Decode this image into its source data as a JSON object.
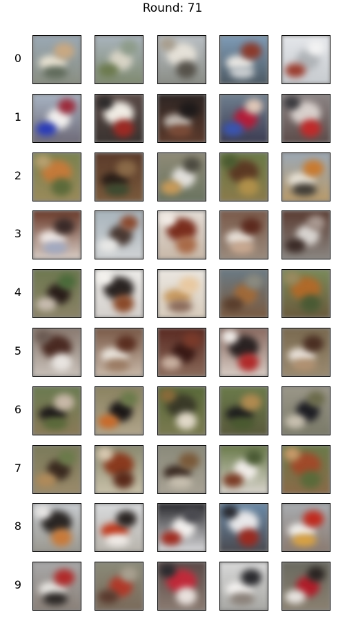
{
  "title": "Round: 71",
  "rows": [
    {
      "label": "0",
      "tiles": [
        {
          "name": "airplane-sample-0-0",
          "bg": [
            "#9aa8b4",
            "#8a8f82"
          ],
          "blobs": [
            "#e8e2d2",
            "#c8a882",
            "#5f6a5a"
          ]
        },
        {
          "name": "airplane-sample-0-1",
          "bg": [
            "#a9b4bd",
            "#7f8a70"
          ],
          "blobs": [
            "#d8d4c6",
            "#6c7a4e",
            "#8d9b89"
          ]
        },
        {
          "name": "airplane-sample-0-2",
          "bg": [
            "#b9bfc4",
            "#8a8d86"
          ],
          "blobs": [
            "#e5e1d8",
            "#56524a",
            "#a89e8e"
          ]
        },
        {
          "name": "airplane-sample-0-3",
          "bg": [
            "#7f9cb7",
            "#4d5a64"
          ],
          "blobs": [
            "#e8e6e2",
            "#8b3a2c",
            "#c9cdd0"
          ]
        },
        {
          "name": "airplane-sample-0-4",
          "bg": [
            "#e4e6ea",
            "#c7cbcf"
          ],
          "blobs": [
            "#b0b4b8",
            "#9a3c2e",
            "#f2f2f2"
          ]
        }
      ]
    },
    {
      "label": "1",
      "tiles": [
        {
          "name": "automobile-sample-1-0",
          "bg": [
            "#a7b3c2",
            "#6e6a78"
          ],
          "blobs": [
            "#f2f0ee",
            "#2a3bb8",
            "#9c2a3a"
          ]
        },
        {
          "name": "automobile-sample-1-1",
          "bg": [
            "#5a4a46",
            "#3a3330"
          ],
          "blobs": [
            "#f0ece4",
            "#9c2a24",
            "#2c2a2a"
          ]
        },
        {
          "name": "automobile-sample-1-2",
          "bg": [
            "#2e2624",
            "#5b3a2c"
          ],
          "blobs": [
            "#c0b8b0",
            "#1e1a1a",
            "#7a4a36"
          ]
        },
        {
          "name": "automobile-sample-1-3",
          "bg": [
            "#6f7f8f",
            "#3c3c52"
          ],
          "blobs": [
            "#b21e3a",
            "#3a54b0",
            "#e0c8b8"
          ]
        },
        {
          "name": "automobile-sample-1-4",
          "bg": [
            "#8c8484",
            "#5c4c4a"
          ],
          "blobs": [
            "#d8d0cc",
            "#c02a2a",
            "#3a3a3e"
          ]
        }
      ]
    },
    {
      "label": "2",
      "tiles": [
        {
          "name": "bird-sample-2-0",
          "bg": [
            "#7a8250",
            "#9a8a5a"
          ],
          "blobs": [
            "#c47a3a",
            "#5c6a3a",
            "#b8a070"
          ]
        },
        {
          "name": "bird-sample-2-1",
          "bg": [
            "#5a3a2a",
            "#7a5a3c"
          ],
          "blobs": [
            "#2a1e18",
            "#8a6a48",
            "#3c4a30"
          ]
        },
        {
          "name": "bird-sample-2-2",
          "bg": [
            "#8e8a76",
            "#6a7460"
          ],
          "blobs": [
            "#e2e0dc",
            "#c89a58",
            "#4c4a40"
          ]
        },
        {
          "name": "bird-sample-2-3",
          "bg": [
            "#6a7a48",
            "#8a7a4a"
          ],
          "blobs": [
            "#5c3a24",
            "#b0904a",
            "#4a5a30"
          ]
        },
        {
          "name": "bird-sample-2-4",
          "bg": [
            "#9ca8b4",
            "#b89a6a"
          ],
          "blobs": [
            "#e8e2d6",
            "#c87a30",
            "#3e3a34"
          ]
        }
      ]
    },
    {
      "label": "3",
      "tiles": [
        {
          "name": "cat-sample-3-0",
          "bg": [
            "#6a3a2a",
            "#d8ccc4"
          ],
          "blobs": [
            "#f0e8e4",
            "#3a2a28",
            "#a0a8c0"
          ]
        },
        {
          "name": "cat-sample-3-1",
          "bg": [
            "#a8b4bc",
            "#cfd2d4"
          ],
          "blobs": [
            "#4a3a34",
            "#e8e8e6",
            "#8a4a30"
          ]
        },
        {
          "name": "cat-sample-3-2",
          "bg": [
            "#e4ddd6",
            "#c8b8a8"
          ],
          "blobs": [
            "#7a2e1e",
            "#a86a48",
            "#f2ece6"
          ]
        },
        {
          "name": "cat-sample-3-3",
          "bg": [
            "#7a5a4a",
            "#9a8a7c"
          ],
          "blobs": [
            "#e8e0d8",
            "#5c2a1e",
            "#c8a890"
          ]
        },
        {
          "name": "cat-sample-3-4",
          "bg": [
            "#5a3c32",
            "#8a8580"
          ],
          "blobs": [
            "#d8d4d0",
            "#3a2a26",
            "#a89890"
          ]
        }
      ]
    },
    {
      "label": "4",
      "tiles": [
        {
          "name": "deer-sample-4-0",
          "bg": [
            "#6e7850",
            "#8a8266"
          ],
          "blobs": [
            "#2a1e1a",
            "#c8bcb0",
            "#4a6a3a"
          ]
        },
        {
          "name": "deer-sample-4-1",
          "bg": [
            "#ecebe8",
            "#d4d0cc"
          ],
          "blobs": [
            "#2a2422",
            "#8a4a2a",
            "#f4f2ee"
          ]
        },
        {
          "name": "deer-sample-4-2",
          "bg": [
            "#eae6e0",
            "#d8ccbc"
          ],
          "blobs": [
            "#c89a60",
            "#e8c8a0",
            "#8a6a5a"
          ]
        },
        {
          "name": "deer-sample-4-3",
          "bg": [
            "#6a7a84",
            "#7a5a40"
          ],
          "blobs": [
            "#a06a3a",
            "#5a3e2c",
            "#8a8a80"
          ]
        },
        {
          "name": "deer-sample-4-4",
          "bg": [
            "#7a8a5a",
            "#6a5a3c"
          ],
          "blobs": [
            "#b06a2a",
            "#4a5a34",
            "#9a8a60"
          ]
        }
      ]
    },
    {
      "label": "5",
      "tiles": [
        {
          "name": "dog-sample-5-0",
          "bg": [
            "#8a7a70",
            "#c8c0b8"
          ],
          "blobs": [
            "#4a2a22",
            "#e8e4e0",
            "#6a5a52"
          ]
        },
        {
          "name": "dog-sample-5-1",
          "bg": [
            "#7a5a48",
            "#c8b8a8"
          ],
          "blobs": [
            "#eae4dc",
            "#5a2e20",
            "#9a7a62"
          ]
        },
        {
          "name": "dog-sample-5-2",
          "bg": [
            "#5a2a22",
            "#8a6a5a"
          ],
          "blobs": [
            "#3a1a16",
            "#c8b0a0",
            "#7a3a2a"
          ]
        },
        {
          "name": "dog-sample-5-3",
          "bg": [
            "#8a6a60",
            "#d8ccc4"
          ],
          "blobs": [
            "#2a2222",
            "#b02a2a",
            "#f0ece8"
          ]
        },
        {
          "name": "dog-sample-5-4",
          "bg": [
            "#7a6a50",
            "#9a8a70"
          ],
          "blobs": [
            "#e8e0d8",
            "#4a2e22",
            "#b09070"
          ]
        }
      ]
    },
    {
      "label": "6",
      "tiles": [
        {
          "name": "frog-sample-6-0",
          "bg": [
            "#6a7a50",
            "#8a7a58"
          ],
          "blobs": [
            "#1e1a1a",
            "#c8b8a8",
            "#5a6a3a"
          ]
        },
        {
          "name": "frog-sample-6-1",
          "bg": [
            "#8a8260",
            "#b0a48a"
          ],
          "blobs": [
            "#1c1818",
            "#c86a2a",
            "#6a7a4a"
          ]
        },
        {
          "name": "frog-sample-6-2",
          "bg": [
            "#5a6a3a",
            "#7a7a50"
          ],
          "blobs": [
            "#3a3a28",
            "#e0d8c8",
            "#8a6a3a"
          ]
        },
        {
          "name": "frog-sample-6-3",
          "bg": [
            "#6a7a4a",
            "#5a5a3c"
          ],
          "blobs": [
            "#1e1e1e",
            "#b08a50",
            "#4a5a30"
          ]
        },
        {
          "name": "frog-sample-6-4",
          "bg": [
            "#9a9688",
            "#7a7a68"
          ],
          "blobs": [
            "#1e1e24",
            "#c8c0b0",
            "#6a6a4a"
          ]
        }
      ]
    },
    {
      "label": "7",
      "tiles": [
        {
          "name": "horse-sample-7-0",
          "bg": [
            "#7a7a5a",
            "#9a8a6a"
          ],
          "blobs": [
            "#3a2a20",
            "#b08a5a",
            "#6a7a4a"
          ]
        },
        {
          "name": "horse-sample-7-1",
          "bg": [
            "#8a8a70",
            "#c8c0a8"
          ],
          "blobs": [
            "#8a3a1e",
            "#5a2a1a",
            "#d8c8b0"
          ]
        },
        {
          "name": "horse-sample-7-2",
          "bg": [
            "#8a8a7a",
            "#a8a294"
          ],
          "blobs": [
            "#3a2a22",
            "#7a5a3a",
            "#c8c0b0"
          ]
        },
        {
          "name": "horse-sample-7-3",
          "bg": [
            "#6a7a4a",
            "#d8d4cc"
          ],
          "blobs": [
            "#f0ece8",
            "#7a3a24",
            "#4a5a34"
          ]
        },
        {
          "name": "horse-sample-7-4",
          "bg": [
            "#6a7a4a",
            "#8a6a48"
          ],
          "blobs": [
            "#a04a2a",
            "#5a6a3a",
            "#c89a6a"
          ]
        }
      ]
    },
    {
      "label": "8",
      "tiles": [
        {
          "name": "ship-sample-8-0",
          "bg": [
            "#c8ccd0",
            "#9a9890"
          ],
          "blobs": [
            "#2a2624",
            "#c87a3a",
            "#e8e6e4"
          ]
        },
        {
          "name": "ship-sample-8-1",
          "bg": [
            "#d8dadc",
            "#b8b4ac"
          ],
          "blobs": [
            "#c03a1e",
            "#2a2422",
            "#f0ece8"
          ]
        },
        {
          "name": "ship-sample-8-2",
          "bg": [
            "#2a2a2e",
            "#d8d8da"
          ],
          "blobs": [
            "#f2f0ee",
            "#a02a1e",
            "#4a4a50"
          ]
        },
        {
          "name": "ship-sample-8-3",
          "bg": [
            "#6a8aa8",
            "#4a4a50"
          ],
          "blobs": [
            "#e8e8ea",
            "#9a2a20",
            "#2a2a30"
          ]
        },
        {
          "name": "ship-sample-8-4",
          "bg": [
            "#a8acb0",
            "#8a7a70"
          ],
          "blobs": [
            "#f0eeec",
            "#c02a1e",
            "#d8a040"
          ]
        }
      ]
    },
    {
      "label": "9",
      "tiles": [
        {
          "name": "truck-sample-9-0",
          "bg": [
            "#a8a8a8",
            "#8a8078"
          ],
          "blobs": [
            "#e8e6e2",
            "#b02a2a",
            "#2a2624"
          ]
        },
        {
          "name": "truck-sample-9-1",
          "bg": [
            "#8a8a78",
            "#7a6a5a"
          ],
          "blobs": [
            "#b03a2a",
            "#5a3a2e",
            "#a8a090"
          ]
        },
        {
          "name": "truck-sample-9-2",
          "bg": [
            "#5a4a48",
            "#8a7a70"
          ],
          "blobs": [
            "#c02a3a",
            "#e8e0dc",
            "#2a2a2e"
          ]
        },
        {
          "name": "truck-sample-9-3",
          "bg": [
            "#d8d8d8",
            "#a8a8a4"
          ],
          "blobs": [
            "#f4f2f0",
            "#2a2a2e",
            "#8a8078"
          ]
        },
        {
          "name": "truck-sample-9-4",
          "bg": [
            "#6a6a60",
            "#8a8070"
          ],
          "blobs": [
            "#b01e2a",
            "#e8e4e0",
            "#2a2422"
          ]
        }
      ]
    }
  ]
}
